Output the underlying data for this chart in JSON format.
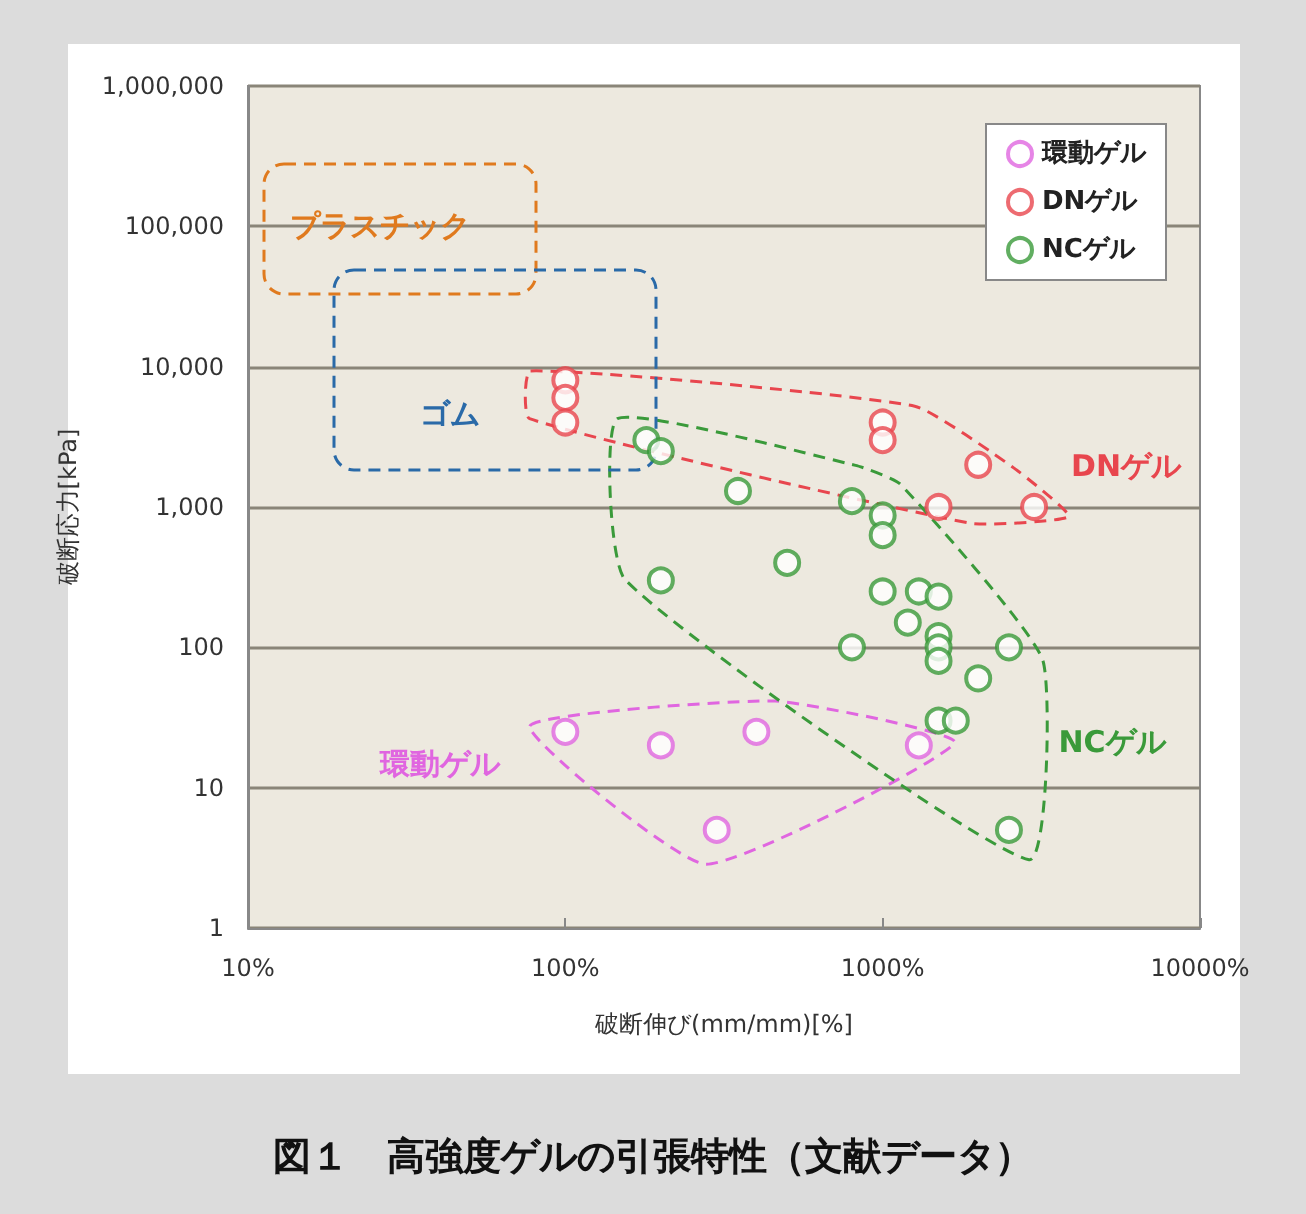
{
  "chart_data": {
    "type": "scatter",
    "title": "図１　高強度ゲルの引張特性（文献データ）",
    "xlabel": "破断伸び(mm/mm)[%]",
    "ylabel": "破断応力[kPa]",
    "log": "xy",
    "xlim": [
      10,
      10000
    ],
    "xticks": [
      {
        "value": 10,
        "label": "10%"
      },
      {
        "value": 100,
        "label": "100%"
      },
      {
        "value": 1000,
        "label": "1000%"
      },
      {
        "value": 10000,
        "label": "10000%"
      }
    ],
    "ylim": [
      1,
      1000000
    ],
    "yticks": [
      {
        "value": 1,
        "label": "1"
      },
      {
        "value": 10,
        "label": "10"
      },
      {
        "value": 100,
        "label": "100"
      },
      {
        "value": 1000,
        "label": "1,000"
      },
      {
        "value": 10000,
        "label": "10,000"
      },
      {
        "value": 100000,
        "label": "100,000"
      },
      {
        "value": 1000000,
        "label": "1,000,000"
      }
    ],
    "grid": "y",
    "legend": "top right",
    "marker": "circle",
    "series": [
      {
        "name": "環動ゲル",
        "color": "#e066e0",
        "x": [
          100,
          200,
          400,
          300,
          1300
        ],
        "values": [
          25,
          20,
          25,
          5,
          20
        ]
      },
      {
        "name": "DNゲル",
        "color": "#e8464e",
        "x": [
          100,
          100,
          100,
          1000,
          1000,
          1500,
          2000,
          3000
        ],
        "values": [
          8000,
          6000,
          4000,
          4000,
          3000,
          1000,
          2000,
          1000
        ]
      },
      {
        "name": "NCゲル",
        "color": "#3a9a3a",
        "x": [
          180,
          200,
          350,
          800,
          1000,
          1000,
          500,
          200,
          1000,
          1300,
          1500,
          1200,
          1500,
          1500,
          1500,
          800,
          2500,
          2000,
          1500,
          1700,
          2500
        ],
        "values": [
          3000,
          2500,
          1300,
          1100,
          870,
          630,
          400,
          300,
          250,
          250,
          230,
          150,
          120,
          100,
          80,
          100,
          100,
          60,
          30,
          30,
          5
        ]
      }
    ],
    "annotations": [
      "プラスチック",
      "ゴム",
      "環動ゲル",
      "DNゲル",
      "NCゲル"
    ]
  }
}
